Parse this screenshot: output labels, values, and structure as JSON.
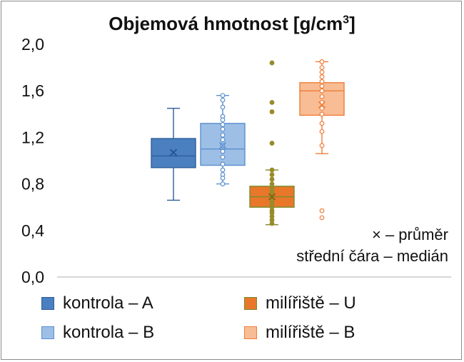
{
  "chart_data": {
    "type": "box",
    "title": "Objemová hmotnost [g/cm",
    "title_superscript": "3",
    "title_suffix": "]",
    "ylim": [
      0,
      2.0
    ],
    "y_ticks": [
      "0,0",
      "0,4",
      "0,8",
      "1,2",
      "1,6",
      "2,0"
    ],
    "y_tick_values": [
      0,
      0.4,
      0.8,
      1.2,
      1.6,
      2.0
    ],
    "grid": false,
    "legend_position": "bottom",
    "annotations": [
      "× – průměr",
      "střední čára – medián"
    ],
    "series": [
      {
        "name": "kontrola – A",
        "color": "#3d72b0",
        "fill": "#4a7fc0",
        "stroke": "#2d5f9a",
        "min": 0.66,
        "q1": 0.94,
        "median": 1.04,
        "q3": 1.19,
        "max": 1.45,
        "mean": 1.07,
        "points": []
      },
      {
        "name": "kontrola – B",
        "color": "#94b8e3",
        "fill": "#9dbfe6",
        "stroke": "#5b8fcf",
        "min": 0.8,
        "q1": 0.96,
        "median": 1.1,
        "q3": 1.32,
        "max": 1.56,
        "mean": 1.13,
        "points": [
          1.56,
          1.52,
          1.46,
          1.38,
          1.35,
          1.31,
          1.27,
          1.22,
          1.18,
          1.13,
          1.08,
          1.03,
          0.97,
          0.92,
          0.88,
          0.85,
          0.8
        ]
      },
      {
        "name": "milířiště – U",
        "color": "#e87722",
        "fill": "#e8772a",
        "stroke": "#7a8a2a",
        "min": 0.45,
        "q1": 0.6,
        "median": 0.69,
        "q3": 0.78,
        "max": 0.92,
        "mean": 0.69,
        "points": [
          1.84,
          1.5,
          1.42,
          1.15,
          0.92,
          0.88,
          0.84,
          0.8,
          0.77,
          0.74,
          0.72,
          0.7,
          0.67,
          0.64,
          0.62,
          0.6,
          0.57,
          0.55,
          0.52,
          0.49,
          0.46
        ]
      },
      {
        "name": "milířiště – B",
        "color": "#f7b58a",
        "fill": "#f8bd94",
        "stroke": "#ef7d3a",
        "min": 1.06,
        "q1": 1.39,
        "median": 1.6,
        "q3": 1.67,
        "max": 1.85,
        "mean": 1.48,
        "points": [
          1.85,
          1.8,
          1.76,
          1.72,
          1.68,
          1.64,
          1.6,
          1.55,
          1.5,
          1.45,
          1.4,
          1.32,
          1.25,
          1.13,
          0.57,
          0.51
        ]
      }
    ]
  }
}
